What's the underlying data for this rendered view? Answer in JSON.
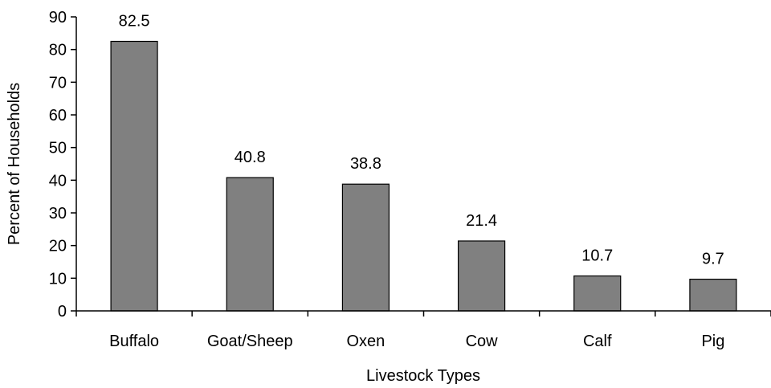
{
  "chart_data": {
    "type": "bar",
    "categories": [
      "Buffalo",
      "Goat/Sheep",
      "Oxen",
      "Cow",
      "Calf",
      "Pig"
    ],
    "values": [
      82.5,
      40.8,
      38.8,
      21.4,
      10.7,
      9.7
    ],
    "data_labels": [
      "82.5",
      "40.8",
      "38.8",
      "21.4",
      "10.7",
      "9.7"
    ],
    "xlabel": "Livestock Types",
    "ylabel": "Percent of Households",
    "ylim": [
      0,
      90
    ],
    "yticks": [
      0,
      10,
      20,
      30,
      40,
      50,
      60,
      70,
      80,
      90
    ],
    "grid": false,
    "bar_color": "#808080"
  }
}
